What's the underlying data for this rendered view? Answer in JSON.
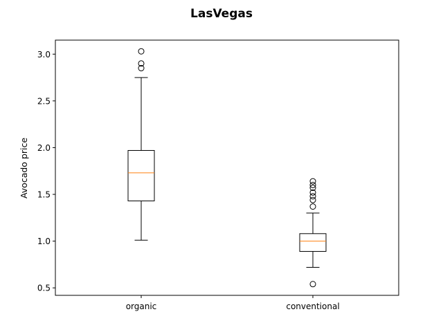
{
  "chart_data": {
    "type": "box",
    "title": "LasVegas",
    "xlabel": "",
    "ylabel": "Avocado price",
    "ylim": [
      0.42,
      3.15
    ],
    "yticks": [
      0.5,
      1.0,
      1.5,
      2.0,
      2.5,
      3.0
    ],
    "ytick_labels": [
      "0.5",
      "1.0",
      "1.5",
      "2.0",
      "2.5",
      "3.0"
    ],
    "grid": false,
    "categories": [
      "organic",
      "conventional"
    ],
    "series": [
      {
        "category": "organic",
        "whisker_low": 1.01,
        "q1": 1.43,
        "median": 1.73,
        "q3": 1.97,
        "whisker_high": 2.75,
        "outliers": [
          2.85,
          2.9,
          3.03
        ]
      },
      {
        "category": "conventional",
        "whisker_low": 0.72,
        "q1": 0.89,
        "median": 1.0,
        "q3": 1.08,
        "whisker_high": 1.3,
        "outliers": [
          0.54,
          1.37,
          1.44,
          1.48,
          1.52,
          1.57,
          1.6,
          1.64
        ]
      }
    ],
    "colors": {
      "box": "#000000",
      "median": "#ff7f0e",
      "outlier_edge": "#000000"
    }
  }
}
